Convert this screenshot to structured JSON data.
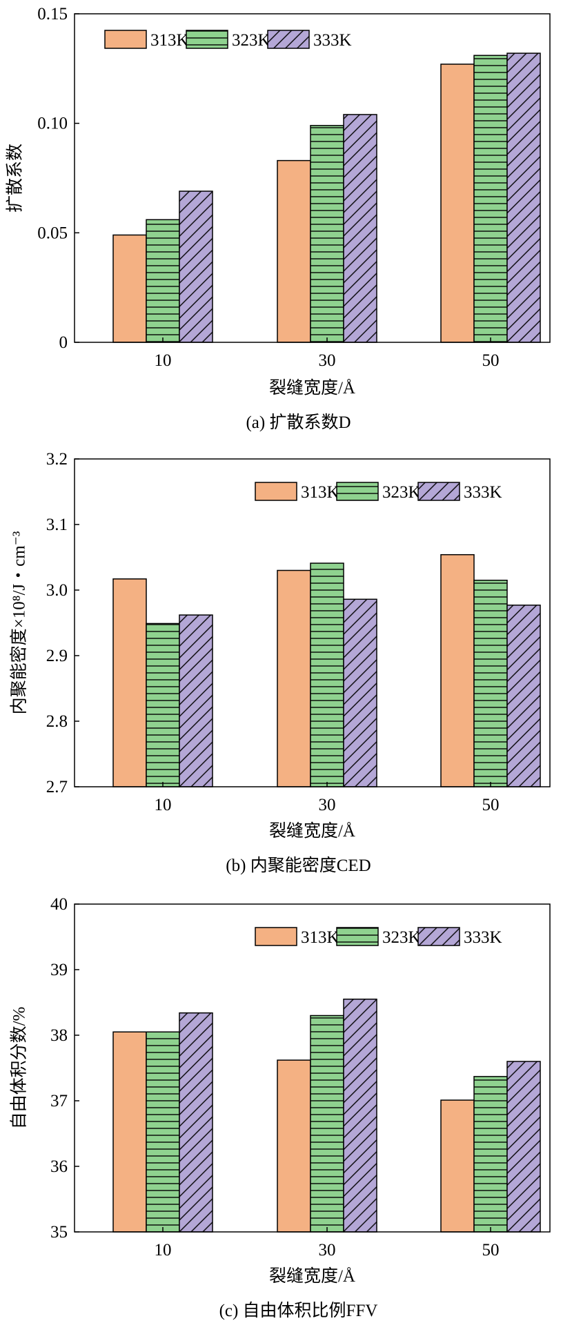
{
  "colors": {
    "s313": "#f4b183",
    "s323": "#8fd28f",
    "s333": "#b4a7d6",
    "line_pattern": "#000000"
  },
  "chart_data": [
    {
      "type": "bar",
      "caption": "(a) 扩散系数D",
      "xlabel": "裂缝宽度/Å",
      "ylabel": "扩散系数",
      "categories": [
        "10",
        "30",
        "50"
      ],
      "ylim": [
        0,
        0.15
      ],
      "yticks": [
        "0",
        "0.05",
        "0.10",
        "0.15"
      ],
      "ytick_values": [
        0,
        0.05,
        0.1,
        0.15
      ],
      "legend_position": "top-left",
      "series": [
        {
          "name": "313K",
          "pattern": "solid",
          "values": [
            0.049,
            0.083,
            0.127
          ]
        },
        {
          "name": "323K",
          "pattern": "horizontal-lines",
          "values": [
            0.056,
            0.099,
            0.131
          ]
        },
        {
          "name": "333K",
          "pattern": "diagonal-hatch",
          "values": [
            0.069,
            0.104,
            0.132
          ]
        }
      ]
    },
    {
      "type": "bar",
      "caption": "(b) 内聚能密度CED",
      "xlabel": "裂缝宽度/Å",
      "ylabel": "内聚能密度×10⁸/J・cm⁻³",
      "categories": [
        "10",
        "30",
        "50"
      ],
      "ylim": [
        2.7,
        3.2
      ],
      "yticks": [
        "2.7",
        "2.8",
        "2.9",
        "3.0",
        "3.1",
        "3.2"
      ],
      "ytick_values": [
        2.7,
        2.8,
        2.9,
        3.0,
        3.1,
        3.2
      ],
      "legend_position": "top-right",
      "series": [
        {
          "name": "313K",
          "pattern": "solid",
          "values": [
            3.017,
            3.03,
            3.054
          ]
        },
        {
          "name": "323K",
          "pattern": "horizontal-lines",
          "values": [
            2.949,
            3.041,
            3.015
          ]
        },
        {
          "name": "333K",
          "pattern": "diagonal-hatch",
          "values": [
            2.962,
            2.986,
            2.977
          ]
        }
      ]
    },
    {
      "type": "bar",
      "caption": "(c) 自由体积比例FFV",
      "xlabel": "裂缝宽度/Å",
      "ylabel": "自由体积分数/%",
      "categories": [
        "10",
        "30",
        "50"
      ],
      "ylim": [
        35,
        40
      ],
      "yticks": [
        "35",
        "36",
        "37",
        "38",
        "39",
        "40"
      ],
      "ytick_values": [
        35,
        36,
        37,
        38,
        39,
        40
      ],
      "legend_position": "top-right",
      "series": [
        {
          "name": "313K",
          "pattern": "solid",
          "values": [
            38.05,
            37.62,
            37.01
          ]
        },
        {
          "name": "323K",
          "pattern": "horizontal-lines",
          "values": [
            38.05,
            38.3,
            37.37
          ]
        },
        {
          "name": "333K",
          "pattern": "diagonal-hatch",
          "values": [
            38.34,
            38.55,
            37.6
          ]
        }
      ]
    }
  ]
}
